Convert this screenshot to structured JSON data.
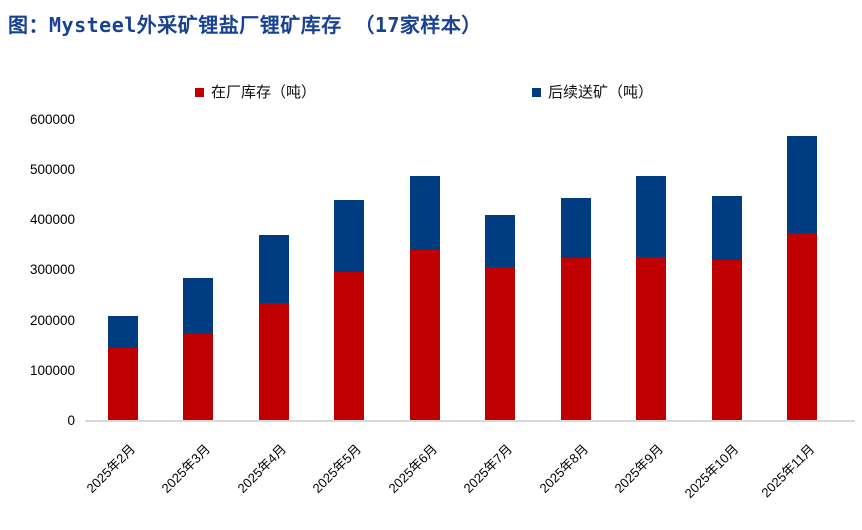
{
  "title": "图：Mysteel外采矿锂盐厂锂矿库存 （17家样本）",
  "legend": [
    {
      "label": "在厂库存（吨）",
      "color": "#c00000"
    },
    {
      "label": "后续送矿（吨）",
      "color": "#003d80"
    }
  ],
  "chart_data": {
    "type": "bar",
    "stacked": true,
    "title": "图：Mysteel外采矿锂盐厂锂矿库存 （17家样本）",
    "categories": [
      "2025年2月",
      "2025年3月",
      "2025年4月",
      "2025年5月",
      "2025年6月",
      "2025年7月",
      "2025年8月",
      "2025年9月",
      "2025年10月",
      "2025年11月"
    ],
    "series": [
      {
        "name": "在厂库存（吨）",
        "color": "#c00000",
        "values": [
          145000,
          175000,
          235000,
          297000,
          340000,
          307000,
          325000,
          327000,
          320000,
          375000
        ]
      },
      {
        "name": "后续送矿（吨）",
        "color": "#003d80",
        "values": [
          64000,
          109000,
          135000,
          142000,
          147000,
          102000,
          118000,
          161000,
          127000,
          192000
        ]
      }
    ],
    "totals": [
      209000,
      284000,
      370000,
      439000,
      487000,
      409000,
      443000,
      488000,
      447000,
      567000
    ],
    "xlabel": "",
    "ylabel": "",
    "ylim": [
      0,
      600000
    ],
    "y_ticks": [
      0,
      100000,
      200000,
      300000,
      400000,
      500000,
      600000
    ],
    "y_tick_labels": [
      "0",
      "100000",
      "200000",
      "300000",
      "400000",
      "500000",
      "600000"
    ],
    "grid": false,
    "legend_position": "top",
    "axis_line_color": "#d9d9d9"
  }
}
